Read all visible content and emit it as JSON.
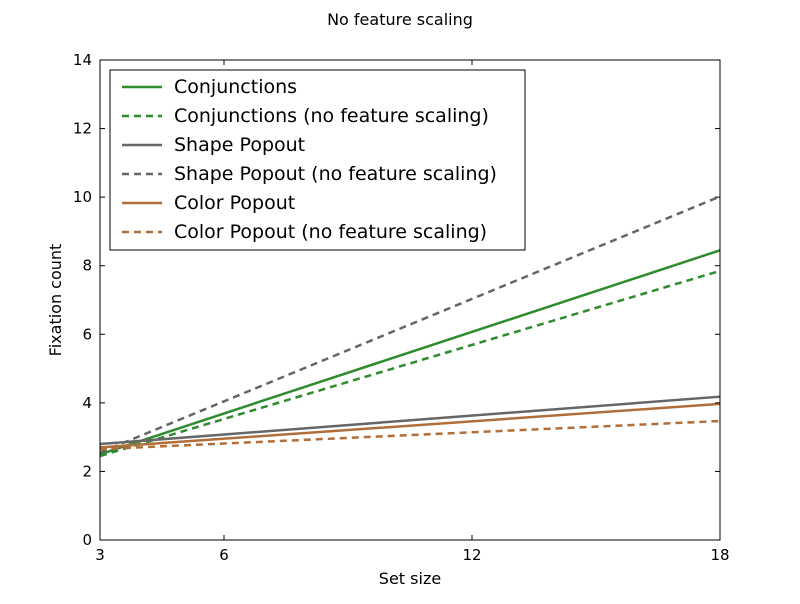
{
  "chart_data": {
    "type": "line",
    "title": "No feature scaling",
    "xlabel": "Set size",
    "ylabel": "Fixation count",
    "xlim": [
      3,
      18
    ],
    "ylim": [
      0,
      14
    ],
    "xticks": [
      3,
      6,
      12,
      18
    ],
    "yticks": [
      0,
      2,
      4,
      6,
      8,
      10,
      12,
      14
    ],
    "grid": false,
    "legend_position": "upper-left",
    "series": [
      {
        "name": "Conjunctions",
        "color": "#2e8b2e",
        "dashed": false,
        "x": [
          3,
          18
        ],
        "y": [
          2.5,
          8.45
        ]
      },
      {
        "name": "Conjunctions (no feature scaling)",
        "color": "#2e8b2e",
        "dashed": true,
        "x": [
          3,
          18
        ],
        "y": [
          2.45,
          7.85
        ]
      },
      {
        "name": "Shape Popout",
        "color": "#666666",
        "dashed": false,
        "x": [
          3,
          18
        ],
        "y": [
          2.8,
          4.18
        ]
      },
      {
        "name": "Shape Popout (no feature scaling)",
        "color": "#666666",
        "dashed": true,
        "x": [
          3,
          18
        ],
        "y": [
          2.55,
          10.02
        ]
      },
      {
        "name": "Color Popout",
        "color": "#b06e3a",
        "dashed": false,
        "x": [
          3,
          18
        ],
        "y": [
          2.7,
          3.97
        ]
      },
      {
        "name": "Color Popout (no feature scaling)",
        "color": "#b06e3a",
        "dashed": true,
        "x": [
          3,
          18
        ],
        "y": [
          2.65,
          3.47
        ]
      }
    ]
  }
}
